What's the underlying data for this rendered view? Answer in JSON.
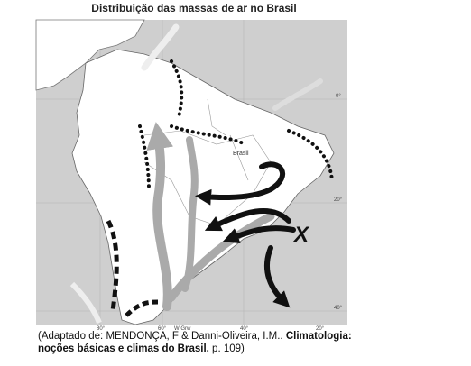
{
  "title": "Distribuição das massas de ar no Brasil",
  "map": {
    "country_label": "Brasil",
    "marker": "X",
    "latitude_labels": [
      "0°",
      "20°",
      "40°"
    ],
    "longitude_labels": [
      "80°",
      "60°",
      "W Grw",
      "40°",
      "20°"
    ]
  },
  "caption": {
    "source": "(Adaptado de: MENDONÇA, F & Danni-Oliveira, I.M..",
    "title": "Climatologia: noções básicas e climas do Brasil.",
    "pages": "p. 109)"
  }
}
